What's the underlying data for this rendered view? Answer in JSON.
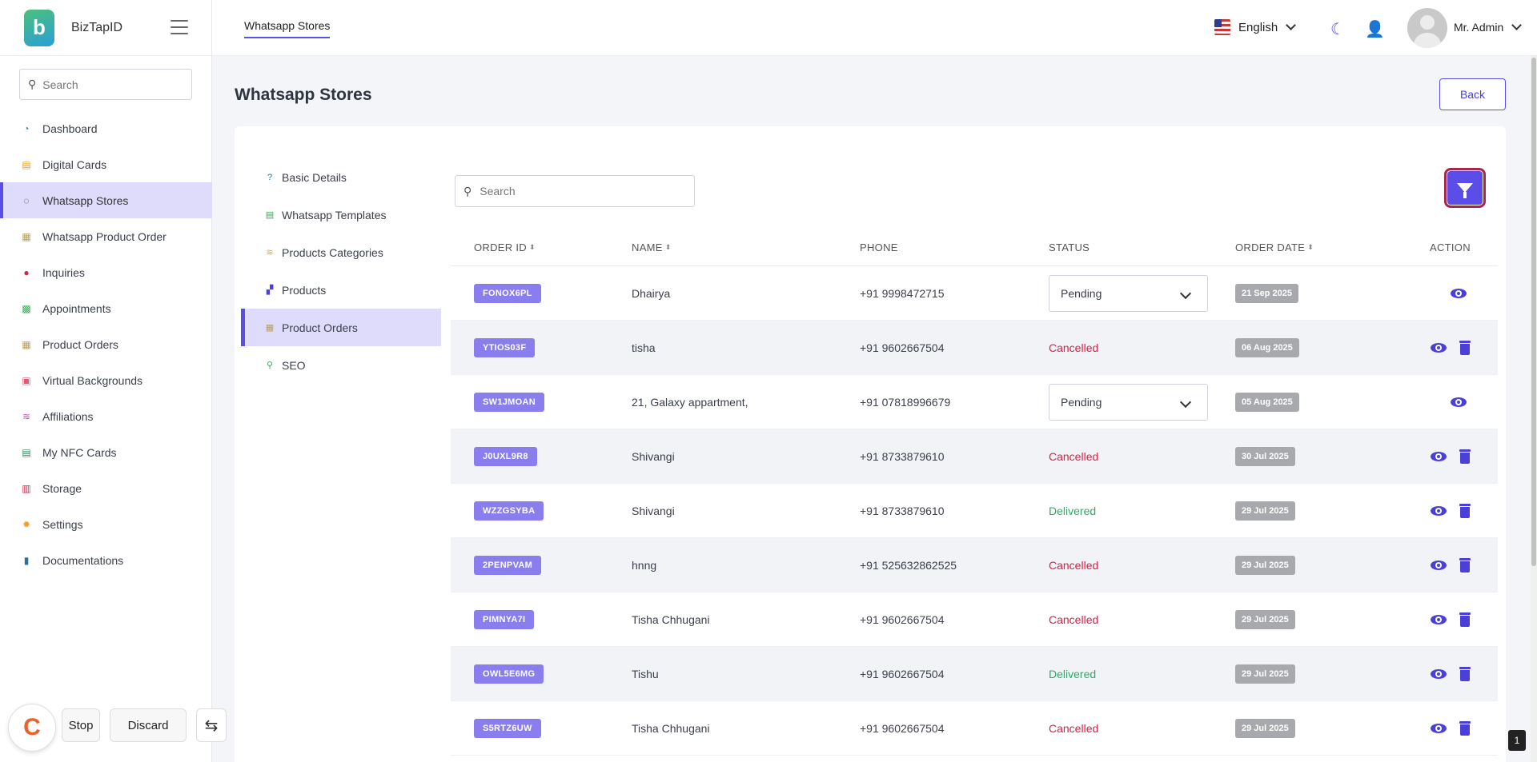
{
  "brand": {
    "name": "BizTapID"
  },
  "sidebar": {
    "search_placeholder": "Search",
    "items": [
      {
        "label": "Dashboard",
        "icon": "dashboard-icon",
        "color": "#2a7fd0",
        "glyph": "◔"
      },
      {
        "label": "Digital Cards",
        "icon": "card-icon",
        "color": "#f0a020",
        "glyph": "▤"
      },
      {
        "label": "Whatsapp Stores",
        "icon": "whatsapp-icon",
        "color": "#333333",
        "glyph": "◌"
      },
      {
        "label": "Whatsapp Product Order",
        "icon": "money-icon",
        "color": "#b8a060",
        "glyph": "▦"
      },
      {
        "label": "Inquiries",
        "icon": "info-icon",
        "color": "#d62246",
        "glyph": "●"
      },
      {
        "label": "Appointments",
        "icon": "calendar-icon",
        "color": "#3aa856",
        "glyph": "▩"
      },
      {
        "label": "Product Orders",
        "icon": "money-icon",
        "color": "#b8a060",
        "glyph": "▦"
      },
      {
        "label": "Virtual Backgrounds",
        "icon": "gift-icon",
        "color": "#e05a78",
        "glyph": "▣"
      },
      {
        "label": "Affiliations",
        "icon": "coins-icon",
        "color": "#c85aa8",
        "glyph": "≋"
      },
      {
        "label": "My NFC Cards",
        "icon": "id-card-icon",
        "color": "#2a8a5a",
        "glyph": "▤"
      },
      {
        "label": "Storage",
        "icon": "storage-icon",
        "color": "#d62246",
        "glyph": "▥"
      },
      {
        "label": "Settings",
        "icon": "gear-icon",
        "color": "#f0a020",
        "glyph": "✹"
      },
      {
        "label": "Documentations",
        "icon": "book-icon",
        "color": "#2a6fa0",
        "glyph": "▮"
      }
    ]
  },
  "topbar": {
    "tab": "Whatsapp Stores",
    "language": "English",
    "user": "Mr. Admin"
  },
  "page": {
    "title": "Whatsapp Stores",
    "back_label": "Back"
  },
  "submenu": [
    {
      "label": "Basic Details",
      "icon": "question-icon",
      "color": "#2a6fa0",
      "glyph": "?"
    },
    {
      "label": "Whatsapp Templates",
      "icon": "document-icon",
      "color": "#3aa856",
      "glyph": "▤"
    },
    {
      "label": "Products Categories",
      "icon": "layers-icon",
      "color": "#f0a020",
      "glyph": "≋"
    },
    {
      "label": "Products",
      "icon": "boxes-icon",
      "color": "#4a3fd6",
      "glyph": "▞"
    },
    {
      "label": "Product Orders",
      "icon": "money-icon",
      "color": "#b8a060",
      "glyph": "▦"
    },
    {
      "label": "SEO",
      "icon": "search-icon",
      "color": "#3aa856",
      "glyph": "⚲"
    }
  ],
  "table": {
    "search_placeholder": "Search",
    "headers": {
      "order_id": "ORDER ID",
      "name": "NAME",
      "phone": "PHONE",
      "status": "STATUS",
      "order_date": "ORDER DATE",
      "action": "ACTION"
    },
    "rows": [
      {
        "id": "FONOX6PL",
        "name": "Dhairya",
        "phone": "+91 9998472715",
        "status": "Pending",
        "status_type": "select",
        "date": "21 Sep 2025",
        "delete": false
      },
      {
        "id": "YTIOS03F",
        "name": "tisha",
        "phone": "+91 9602667504",
        "status": "Cancelled",
        "status_type": "cancelled",
        "date": "06 Aug 2025",
        "delete": true
      },
      {
        "id": "SW1JMOAN",
        "name": "21, Galaxy appartment,",
        "phone": "+91 07818996679",
        "status": "Pending",
        "status_type": "select",
        "date": "05 Aug 2025",
        "delete": false
      },
      {
        "id": "J0UXL9R8",
        "name": "Shivangi",
        "phone": "+91 8733879610",
        "status": "Cancelled",
        "status_type": "cancelled",
        "date": "30 Jul 2025",
        "delete": true
      },
      {
        "id": "WZZGSYBA",
        "name": "Shivangi",
        "phone": "+91 8733879610",
        "status": "Delivered",
        "status_type": "delivered",
        "date": "29 Jul 2025",
        "delete": true
      },
      {
        "id": "2PENPVAM",
        "name": "hnng",
        "phone": "+91 525632862525",
        "status": "Cancelled",
        "status_type": "cancelled",
        "date": "29 Jul 2025",
        "delete": true
      },
      {
        "id": "PIMNYA7I",
        "name": "Tisha Chhugani",
        "phone": "+91 9602667504",
        "status": "Cancelled",
        "status_type": "cancelled",
        "date": "29 Jul 2025",
        "delete": true
      },
      {
        "id": "OWL5E6MG",
        "name": "Tishu",
        "phone": "+91 9602667504",
        "status": "Delivered",
        "status_type": "delivered",
        "date": "29 Jul 2025",
        "delete": true
      },
      {
        "id": "S5RTZ6UW",
        "name": "Tisha Chhugani",
        "phone": "+91 9602667504",
        "status": "Cancelled",
        "status_type": "cancelled",
        "date": "29 Jul 2025",
        "delete": true
      }
    ]
  },
  "floating": {
    "stop_label": "Stop",
    "discard_label": "Discard",
    "page_number": "1"
  },
  "colors": {
    "accent": "#5b4ee8",
    "cancelled": "#d62246",
    "delivered": "#2fa86a"
  }
}
